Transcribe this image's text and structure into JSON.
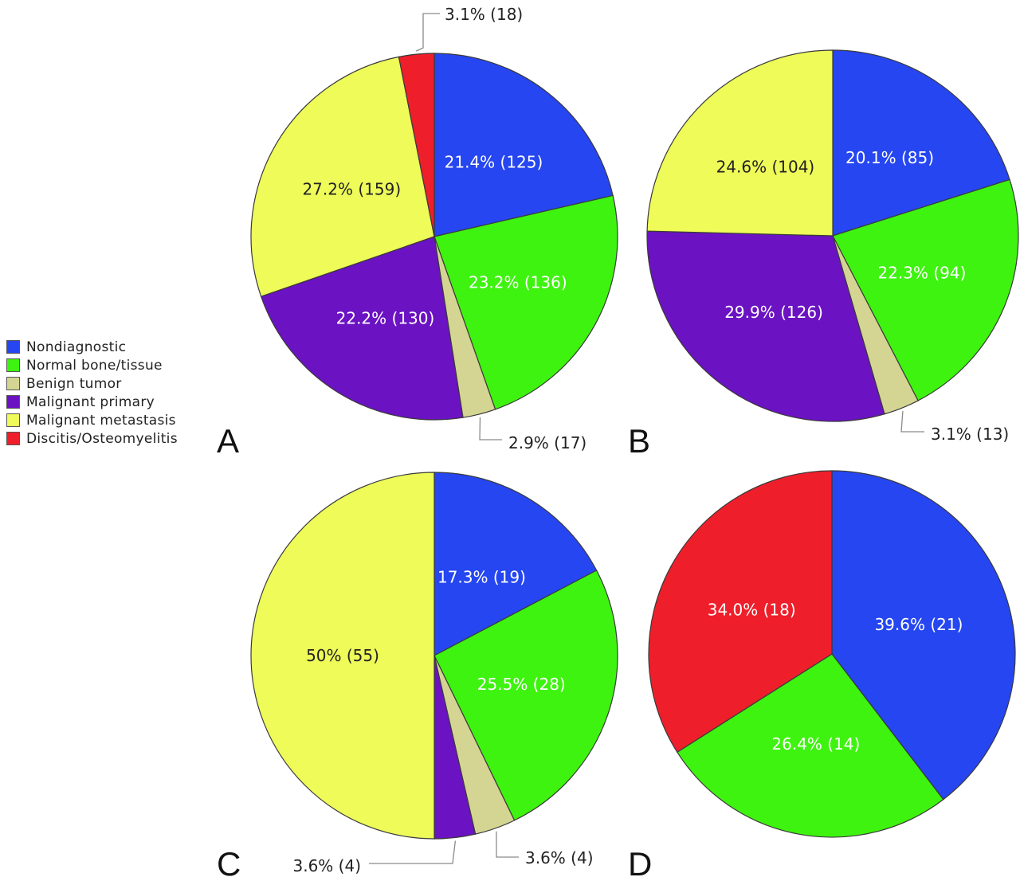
{
  "legend": [
    {
      "label": "Nondiagnostic",
      "color": "#2546f0"
    },
    {
      "label": "Normal bone/tissue",
      "color": "#3ef30f"
    },
    {
      "label": "Benign tumor",
      "color": "#d5d593"
    },
    {
      "label": "Malignant primary",
      "color": "#6b12c2"
    },
    {
      "label": "Malignant metastasis",
      "color": "#eefb58"
    },
    {
      "label": "Discitis/Osteomyelitis",
      "color": "#ee1f2a"
    }
  ],
  "chart_data": [
    {
      "type": "pie",
      "panel": "A",
      "slices": [
        {
          "category": "Nondiagnostic",
          "percent": 21.4,
          "count": 125,
          "label": "21.4% (125)"
        },
        {
          "category": "Normal bone/tissue",
          "percent": 23.2,
          "count": 136,
          "label": "23.2% (136)"
        },
        {
          "category": "Benign tumor",
          "percent": 2.9,
          "count": 17,
          "label": "2.9% (17)"
        },
        {
          "category": "Malignant primary",
          "percent": 22.2,
          "count": 130,
          "label": "22.2% (130)"
        },
        {
          "category": "Malignant metastasis",
          "percent": 27.2,
          "count": 159,
          "label": "27.2% (159)"
        },
        {
          "category": "Discitis/Osteomyelitis",
          "percent": 3.1,
          "count": 18,
          "label": "3.1% (18)"
        }
      ]
    },
    {
      "type": "pie",
      "panel": "B",
      "slices": [
        {
          "category": "Nondiagnostic",
          "percent": 20.1,
          "count": 85,
          "label": "20.1% (85)"
        },
        {
          "category": "Normal bone/tissue",
          "percent": 22.3,
          "count": 94,
          "label": "22.3% (94)"
        },
        {
          "category": "Benign tumor",
          "percent": 3.1,
          "count": 13,
          "label": "3.1% (13)"
        },
        {
          "category": "Malignant primary",
          "percent": 29.9,
          "count": 126,
          "label": "29.9% (126)"
        },
        {
          "category": "Malignant metastasis",
          "percent": 24.6,
          "count": 104,
          "label": "24.6% (104)"
        }
      ]
    },
    {
      "type": "pie",
      "panel": "C",
      "slices": [
        {
          "category": "Nondiagnostic",
          "percent": 17.3,
          "count": 19,
          "label": "17.3% (19)"
        },
        {
          "category": "Normal bone/tissue",
          "percent": 25.5,
          "count": 28,
          "label": "25.5% (28)"
        },
        {
          "category": "Benign tumor",
          "percent": 3.6,
          "count": 4,
          "label": "3.6% (4)"
        },
        {
          "category": "Malignant primary",
          "percent": 3.6,
          "count": 4,
          "label": "3.6% (4)"
        },
        {
          "category": "Malignant metastasis",
          "percent": 50,
          "count": 55,
          "label": "50% (55)"
        }
      ]
    },
    {
      "type": "pie",
      "panel": "D",
      "slices": [
        {
          "category": "Nondiagnostic",
          "percent": 39.6,
          "count": 21,
          "label": "39.6% (21)"
        },
        {
          "category": "Normal bone/tissue",
          "percent": 26.4,
          "count": 14,
          "label": "26.4% (14)"
        },
        {
          "category": "Discitis/Osteomyelitis",
          "percent": 34.0,
          "count": 18,
          "label": "34.0% (18)"
        }
      ]
    }
  ]
}
